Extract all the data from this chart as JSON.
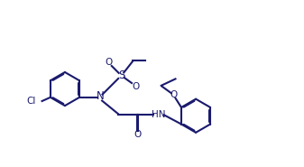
{
  "line_color": "#1a1a6e",
  "bg_color": "#ffffff",
  "lw": 1.5,
  "figsize": [
    3.37,
    1.85
  ],
  "dpi": 100,
  "ring_r": 0.4,
  "xlim": [
    0.0,
    7.2
  ],
  "ylim": [
    0.5,
    4.2
  ]
}
